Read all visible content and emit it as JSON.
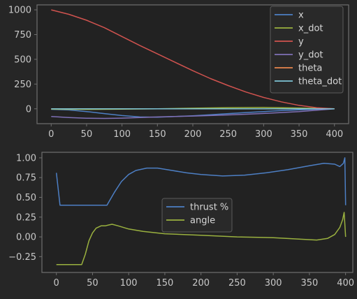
{
  "colors": {
    "figure_background": "#262626",
    "axes_background": "#222222",
    "axes_edge": "#6f6f6f",
    "tick_text": "#c8c8c8",
    "legend_background": "#2a2a2a",
    "legend_edge": "#5a5a5a"
  },
  "chart_data": [
    {
      "type": "line",
      "title": "",
      "xlabel": "",
      "ylabel": "",
      "xlim": [
        -20,
        420
      ],
      "ylim": [
        -150,
        1050
      ],
      "xticks": [
        0,
        50,
        100,
        150,
        200,
        250,
        300,
        350,
        400
      ],
      "yticks": [
        0,
        250,
        500,
        750,
        1000
      ],
      "legend_position": "top-right",
      "series": [
        {
          "name": "x",
          "color": "#4d7fc4",
          "points": [
            [
              0,
              -5
            ],
            [
              25,
              -12
            ],
            [
              50,
              -28
            ],
            [
              75,
              -48
            ],
            [
              100,
              -68
            ],
            [
              125,
              -82
            ],
            [
              150,
              -84
            ],
            [
              175,
              -78
            ],
            [
              200,
              -70
            ],
            [
              225,
              -60
            ],
            [
              250,
              -48
            ],
            [
              275,
              -38
            ],
            [
              300,
              -28
            ],
            [
              325,
              -18
            ],
            [
              350,
              -10
            ],
            [
              375,
              -4
            ],
            [
              400,
              0
            ]
          ]
        },
        {
          "name": "x_dot",
          "color": "#9ab13f",
          "points": [
            [
              0,
              -3
            ],
            [
              50,
              -6
            ],
            [
              100,
              -4
            ],
            [
              150,
              0
            ],
            [
              200,
              6
            ],
            [
              250,
              12
            ],
            [
              300,
              14
            ],
            [
              350,
              8
            ],
            [
              400,
              0
            ]
          ]
        },
        {
          "name": "y",
          "color": "#d0534f",
          "points": [
            [
              0,
              1000
            ],
            [
              25,
              955
            ],
            [
              50,
              895
            ],
            [
              75,
              820
            ],
            [
              100,
              730
            ],
            [
              125,
              640
            ],
            [
              150,
              555
            ],
            [
              175,
              470
            ],
            [
              200,
              385
            ],
            [
              225,
              305
            ],
            [
              250,
              235
            ],
            [
              275,
              170
            ],
            [
              300,
              115
            ],
            [
              325,
              70
            ],
            [
              350,
              35
            ],
            [
              375,
              10
            ],
            [
              400,
              0
            ]
          ]
        },
        {
          "name": "y_dot",
          "color": "#7f70b6",
          "points": [
            [
              0,
              -78
            ],
            [
              25,
              -88
            ],
            [
              50,
              -95
            ],
            [
              75,
              -97
            ],
            [
              100,
              -94
            ],
            [
              125,
              -88
            ],
            [
              150,
              -82
            ],
            [
              175,
              -77
            ],
            [
              200,
              -73
            ],
            [
              225,
              -68
            ],
            [
              250,
              -62
            ],
            [
              275,
              -55
            ],
            [
              300,
              -47
            ],
            [
              325,
              -38
            ],
            [
              350,
              -28
            ],
            [
              375,
              -14
            ],
            [
              400,
              0
            ]
          ]
        },
        {
          "name": "theta",
          "color": "#e8864d",
          "points": [
            [
              0,
              0
            ],
            [
              400,
              0
            ]
          ]
        },
        {
          "name": "theta_dot",
          "color": "#7ec3d6",
          "points": [
            [
              0,
              0
            ],
            [
              400,
              0
            ]
          ]
        }
      ]
    },
    {
      "type": "line",
      "title": "",
      "xlabel": "",
      "ylabel": "",
      "xlim": [
        -20,
        410
      ],
      "ylim": [
        -0.45,
        1.07
      ],
      "xticks": [
        0,
        50,
        100,
        150,
        200,
        250,
        300,
        350,
        400
      ],
      "yticks": [
        -0.25,
        0.0,
        0.25,
        0.5,
        0.75,
        1.0
      ],
      "ytick_labels": [
        "−0.25",
        "0.00",
        "0.25",
        "0.50",
        "0.75",
        "1.00"
      ],
      "legend_position": "center",
      "series": [
        {
          "name": "thrust %",
          "color": "#4d7fc4",
          "points": [
            [
              0,
              0.81
            ],
            [
              5,
              0.4
            ],
            [
              70,
              0.4
            ],
            [
              80,
              0.56
            ],
            [
              90,
              0.7
            ],
            [
              100,
              0.79
            ],
            [
              110,
              0.84
            ],
            [
              125,
              0.87
            ],
            [
              140,
              0.87
            ],
            [
              160,
              0.84
            ],
            [
              180,
              0.81
            ],
            [
              200,
              0.79
            ],
            [
              230,
              0.77
            ],
            [
              260,
              0.78
            ],
            [
              290,
              0.81
            ],
            [
              320,
              0.85
            ],
            [
              350,
              0.9
            ],
            [
              370,
              0.93
            ],
            [
              385,
              0.92
            ],
            [
              392,
              0.89
            ],
            [
              397,
              0.93
            ],
            [
              399,
              1.0
            ],
            [
              400,
              0.4
            ]
          ]
        },
        {
          "name": "angle",
          "color": "#9ab13f",
          "points": [
            [
              0,
              -0.35
            ],
            [
              35,
              -0.35
            ],
            [
              40,
              -0.22
            ],
            [
              45,
              -0.05
            ],
            [
              50,
              0.05
            ],
            [
              55,
              0.11
            ],
            [
              62,
              0.14
            ],
            [
              68,
              0.14
            ],
            [
              72,
              0.15
            ],
            [
              77,
              0.16
            ],
            [
              85,
              0.14
            ],
            [
              100,
              0.1
            ],
            [
              120,
              0.07
            ],
            [
              150,
              0.04
            ],
            [
              200,
              0.02
            ],
            [
              250,
              0.0
            ],
            [
              300,
              -0.01
            ],
            [
              340,
              -0.03
            ],
            [
              360,
              -0.04
            ],
            [
              375,
              -0.02
            ],
            [
              385,
              0.03
            ],
            [
              392,
              0.12
            ],
            [
              396,
              0.22
            ],
            [
              398,
              0.31
            ],
            [
              400,
              0.0
            ]
          ]
        }
      ]
    }
  ]
}
